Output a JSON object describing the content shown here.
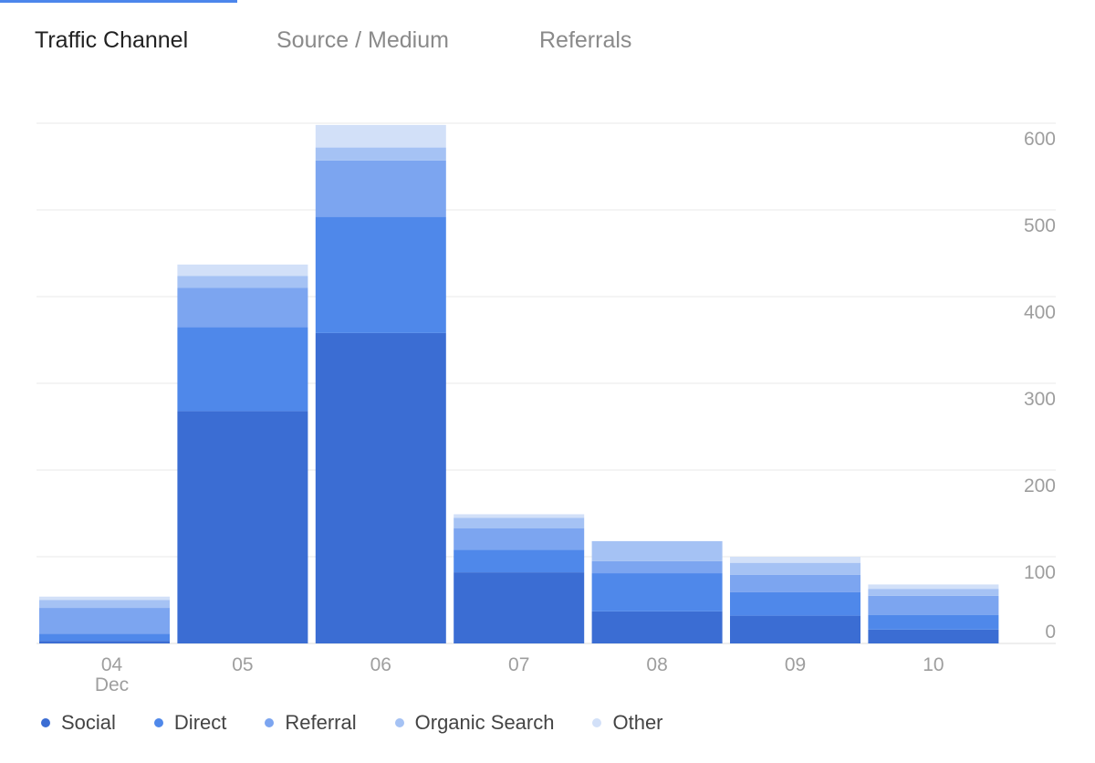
{
  "tabs": [
    {
      "label": "Traffic Channel",
      "active": true
    },
    {
      "label": "Source / Medium",
      "active": false
    },
    {
      "label": "Referrals",
      "active": false
    }
  ],
  "colors": {
    "Social": "#3b6dd3",
    "Direct": "#4f88ea",
    "Referral": "#7ca5f0",
    "Organic Search": "#a5c2f4",
    "Other": "#d2e0f8",
    "accent": "#4c86ec",
    "grid": "#e8e8e8",
    "axis_text": "#9e9e9e"
  },
  "chart_data": {
    "type": "bar",
    "stacked": true,
    "categories": [
      "04",
      "05",
      "06",
      "07",
      "08",
      "09",
      "10"
    ],
    "x_sublabel": {
      "category": "04",
      "text": "Dec"
    },
    "series": [
      {
        "name": "Social",
        "values": [
          3,
          268,
          358,
          82,
          37,
          32,
          16
        ]
      },
      {
        "name": "Direct",
        "values": [
          8,
          97,
          134,
          26,
          44,
          27,
          17
        ]
      },
      {
        "name": "Referral",
        "values": [
          30,
          45,
          65,
          25,
          14,
          20,
          22
        ]
      },
      {
        "name": "Organic Search",
        "values": [
          9,
          14,
          15,
          12,
          23,
          14,
          8
        ]
      },
      {
        "name": "Other",
        "values": [
          4,
          13,
          26,
          4,
          0,
          7,
          5
        ]
      }
    ],
    "y_ticks": [
      0,
      100,
      200,
      300,
      400,
      500,
      600
    ],
    "ylim": [
      0,
      600
    ],
    "y_axis_position": "right",
    "grid": true,
    "legend_position": "bottom"
  }
}
